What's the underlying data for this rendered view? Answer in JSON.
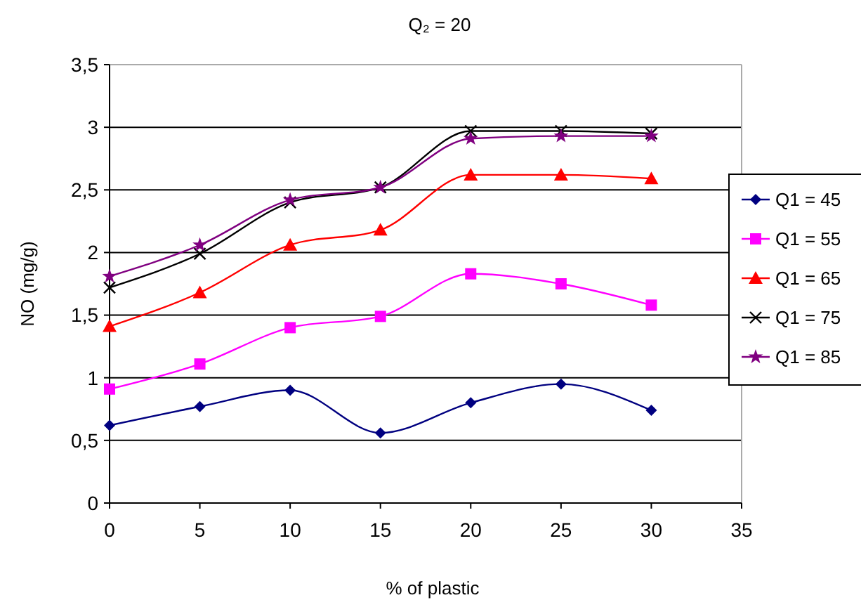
{
  "chart_data": {
    "type": "line",
    "title": "Q₂ = 20",
    "xlabel": "% of plastic",
    "ylabel": "NO (mg/g)",
    "x": [
      0,
      5,
      10,
      15,
      20,
      25,
      30
    ],
    "xlim": [
      0,
      35
    ],
    "xticks": [
      0,
      5,
      10,
      15,
      20,
      25,
      30,
      35
    ],
    "ylim": [
      0,
      3.5
    ],
    "yticks": [
      0,
      {
        "value": 0.5,
        "label": "0,5"
      },
      1,
      {
        "value": 1.5,
        "label": "1,5"
      },
      2,
      {
        "value": 2.5,
        "label": "2,5"
      },
      3,
      {
        "value": 3.5,
        "label": "3,5"
      }
    ],
    "grid": "y",
    "legend": "right",
    "series": [
      {
        "name": "Q1 = 45",
        "color": "#000080",
        "marker": "diamond",
        "values": [
          0.62,
          0.77,
          0.9,
          0.56,
          0.8,
          0.95,
          0.74
        ]
      },
      {
        "name": "Q1 = 55",
        "color": "#ff00ff",
        "marker": "square",
        "values": [
          0.91,
          1.11,
          1.4,
          1.49,
          1.83,
          1.75,
          1.58
        ]
      },
      {
        "name": "Q1 = 65",
        "color": "#ff0000",
        "marker": "triangle",
        "values": [
          1.41,
          1.68,
          2.06,
          2.18,
          2.62,
          2.62,
          2.59
        ]
      },
      {
        "name": "Q1 = 75",
        "color": "#000000",
        "marker": "cross",
        "values": [
          1.72,
          1.99,
          2.4,
          2.52,
          2.97,
          2.97,
          2.95
        ]
      },
      {
        "name": "Q1 = 85",
        "color": "#800080",
        "marker": "star",
        "values": [
          1.81,
          2.06,
          2.42,
          2.52,
          2.91,
          2.93,
          2.93
        ]
      }
    ]
  }
}
